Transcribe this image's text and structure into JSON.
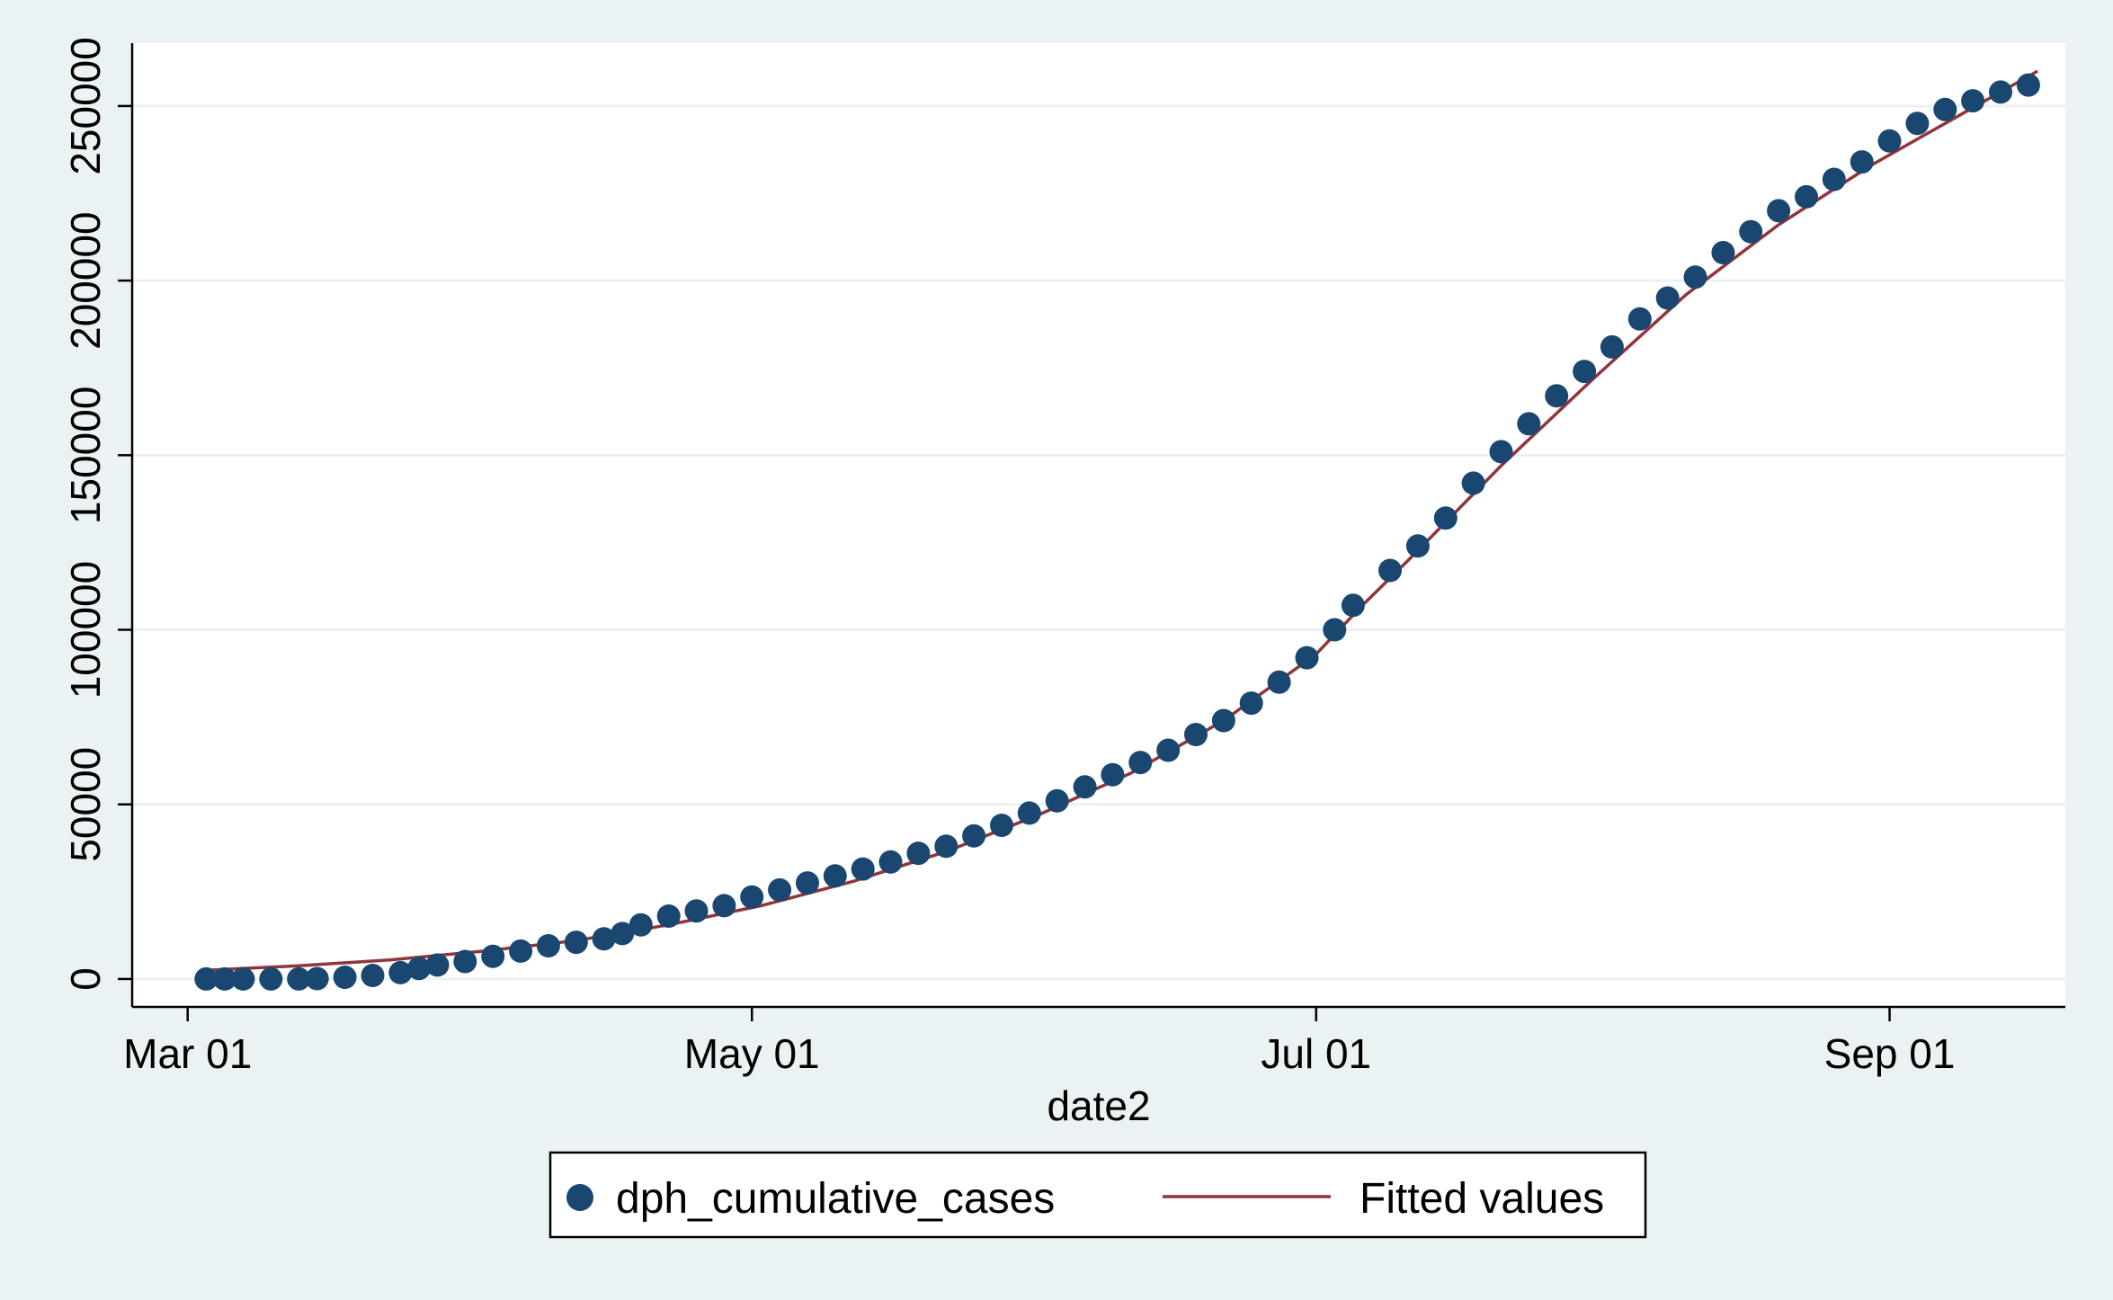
{
  "chart_data": {
    "type": "scatter",
    "x_axis": {
      "title": "date2",
      "min": "2020-02-24",
      "max": "2020-09-20",
      "ticks": [
        {
          "date": "2020-03-01",
          "label": "Mar 01"
        },
        {
          "date": "2020-05-01",
          "label": "May 01"
        },
        {
          "date": "2020-07-01",
          "label": "Jul 01"
        },
        {
          "date": "2020-09-01",
          "label": "Sep 01"
        }
      ]
    },
    "y_axis": {
      "title": "",
      "min": -8000,
      "max": 268000,
      "ticks": [
        {
          "value": 0,
          "label": "0"
        },
        {
          "value": 50000,
          "label": "50000"
        },
        {
          "value": 100000,
          "label": "100000"
        },
        {
          "value": 150000,
          "label": "150000"
        },
        {
          "value": 200000,
          "label": "200000"
        },
        {
          "value": 250000,
          "label": "250000"
        }
      ]
    },
    "grid": "horizontal",
    "legend_position": "bottom",
    "colors": {
      "points": "#1a476f",
      "fit": "#90353b",
      "grid": "#eaf2f3",
      "plot_bg": "#ffffff",
      "page_bg": "#eaf2f3"
    },
    "series": [
      {
        "name": "dph_cumulative_cases",
        "kind": "scatter",
        "points": [
          {
            "x": "2020-03-03",
            "y": 0
          },
          {
            "x": "2020-03-05",
            "y": 0
          },
          {
            "x": "2020-03-07",
            "y": 0
          },
          {
            "x": "2020-03-10",
            "y": 0
          },
          {
            "x": "2020-03-13",
            "y": 0
          },
          {
            "x": "2020-03-15",
            "y": 100
          },
          {
            "x": "2020-03-18",
            "y": 500
          },
          {
            "x": "2020-03-21",
            "y": 1000
          },
          {
            "x": "2020-03-24",
            "y": 1800
          },
          {
            "x": "2020-03-26",
            "y": 3000
          },
          {
            "x": "2020-03-28",
            "y": 4000
          },
          {
            "x": "2020-03-31",
            "y": 5000
          },
          {
            "x": "2020-04-03",
            "y": 6500
          },
          {
            "x": "2020-04-06",
            "y": 8000
          },
          {
            "x": "2020-04-09",
            "y": 9500
          },
          {
            "x": "2020-04-12",
            "y": 10500
          },
          {
            "x": "2020-04-15",
            "y": 11500
          },
          {
            "x": "2020-04-17",
            "y": 13000
          },
          {
            "x": "2020-04-19",
            "y": 15500
          },
          {
            "x": "2020-04-22",
            "y": 18000
          },
          {
            "x": "2020-04-25",
            "y": 19500
          },
          {
            "x": "2020-04-28",
            "y": 21000
          },
          {
            "x": "2020-05-01",
            "y": 23500
          },
          {
            "x": "2020-05-04",
            "y": 25500
          },
          {
            "x": "2020-05-07",
            "y": 27500
          },
          {
            "x": "2020-05-10",
            "y": 29500
          },
          {
            "x": "2020-05-13",
            "y": 31500
          },
          {
            "x": "2020-05-16",
            "y": 33500
          },
          {
            "x": "2020-05-19",
            "y": 36000
          },
          {
            "x": "2020-05-22",
            "y": 38000
          },
          {
            "x": "2020-05-25",
            "y": 41000
          },
          {
            "x": "2020-05-28",
            "y": 44000
          },
          {
            "x": "2020-05-31",
            "y": 47500
          },
          {
            "x": "2020-06-03",
            "y": 51000
          },
          {
            "x": "2020-06-06",
            "y": 55000
          },
          {
            "x": "2020-06-09",
            "y": 58500
          },
          {
            "x": "2020-06-12",
            "y": 62000
          },
          {
            "x": "2020-06-15",
            "y": 65500
          },
          {
            "x": "2020-06-18",
            "y": 70000
          },
          {
            "x": "2020-06-21",
            "y": 74000
          },
          {
            "x": "2020-06-24",
            "y": 79000
          },
          {
            "x": "2020-06-27",
            "y": 85000
          },
          {
            "x": "2020-06-30",
            "y": 92000
          },
          {
            "x": "2020-07-03",
            "y": 100000
          },
          {
            "x": "2020-07-05",
            "y": 107000
          },
          {
            "x": "2020-07-09",
            "y": 117000
          },
          {
            "x": "2020-07-12",
            "y": 124000
          },
          {
            "x": "2020-07-15",
            "y": 132000
          },
          {
            "x": "2020-07-18",
            "y": 142000
          },
          {
            "x": "2020-07-21",
            "y": 151000
          },
          {
            "x": "2020-07-24",
            "y": 159000
          },
          {
            "x": "2020-07-27",
            "y": 167000
          },
          {
            "x": "2020-07-30",
            "y": 174000
          },
          {
            "x": "2020-08-02",
            "y": 181000
          },
          {
            "x": "2020-08-05",
            "y": 189000
          },
          {
            "x": "2020-08-08",
            "y": 195000
          },
          {
            "x": "2020-08-11",
            "y": 201000
          },
          {
            "x": "2020-08-14",
            "y": 208000
          },
          {
            "x": "2020-08-17",
            "y": 214000
          },
          {
            "x": "2020-08-20",
            "y": 220000
          },
          {
            "x": "2020-08-23",
            "y": 224000
          },
          {
            "x": "2020-08-26",
            "y": 229000
          },
          {
            "x": "2020-08-29",
            "y": 234000
          },
          {
            "x": "2020-09-01",
            "y": 240000
          },
          {
            "x": "2020-09-04",
            "y": 245000
          },
          {
            "x": "2020-09-07",
            "y": 249000
          },
          {
            "x": "2020-09-10",
            "y": 251500
          },
          {
            "x": "2020-09-13",
            "y": 254000
          },
          {
            "x": "2020-09-16",
            "y": 256000
          }
        ]
      },
      {
        "name": "Fitted values",
        "kind": "line",
        "points": [
          {
            "x": "2020-03-03",
            "y": 2500
          },
          {
            "x": "2020-03-13",
            "y": 3800
          },
          {
            "x": "2020-03-23",
            "y": 5500
          },
          {
            "x": "2020-04-02",
            "y": 8000
          },
          {
            "x": "2020-04-12",
            "y": 11000
          },
          {
            "x": "2020-04-22",
            "y": 15500
          },
          {
            "x": "2020-05-02",
            "y": 21000
          },
          {
            "x": "2020-05-12",
            "y": 28000
          },
          {
            "x": "2020-05-22",
            "y": 36500
          },
          {
            "x": "2020-06-01",
            "y": 47000
          },
          {
            "x": "2020-06-11",
            "y": 59000
          },
          {
            "x": "2020-06-21",
            "y": 74000
          },
          {
            "x": "2020-07-01",
            "y": 93000
          },
          {
            "x": "2020-07-06",
            "y": 107000
          },
          {
            "x": "2020-07-11",
            "y": 120000
          },
          {
            "x": "2020-07-21",
            "y": 147000
          },
          {
            "x": "2020-07-31",
            "y": 172000
          },
          {
            "x": "2020-08-10",
            "y": 196000
          },
          {
            "x": "2020-08-20",
            "y": 216000
          },
          {
            "x": "2020-08-30",
            "y": 233000
          },
          {
            "x": "2020-09-09",
            "y": 248000
          },
          {
            "x": "2020-09-17",
            "y": 260000
          }
        ]
      }
    ]
  }
}
